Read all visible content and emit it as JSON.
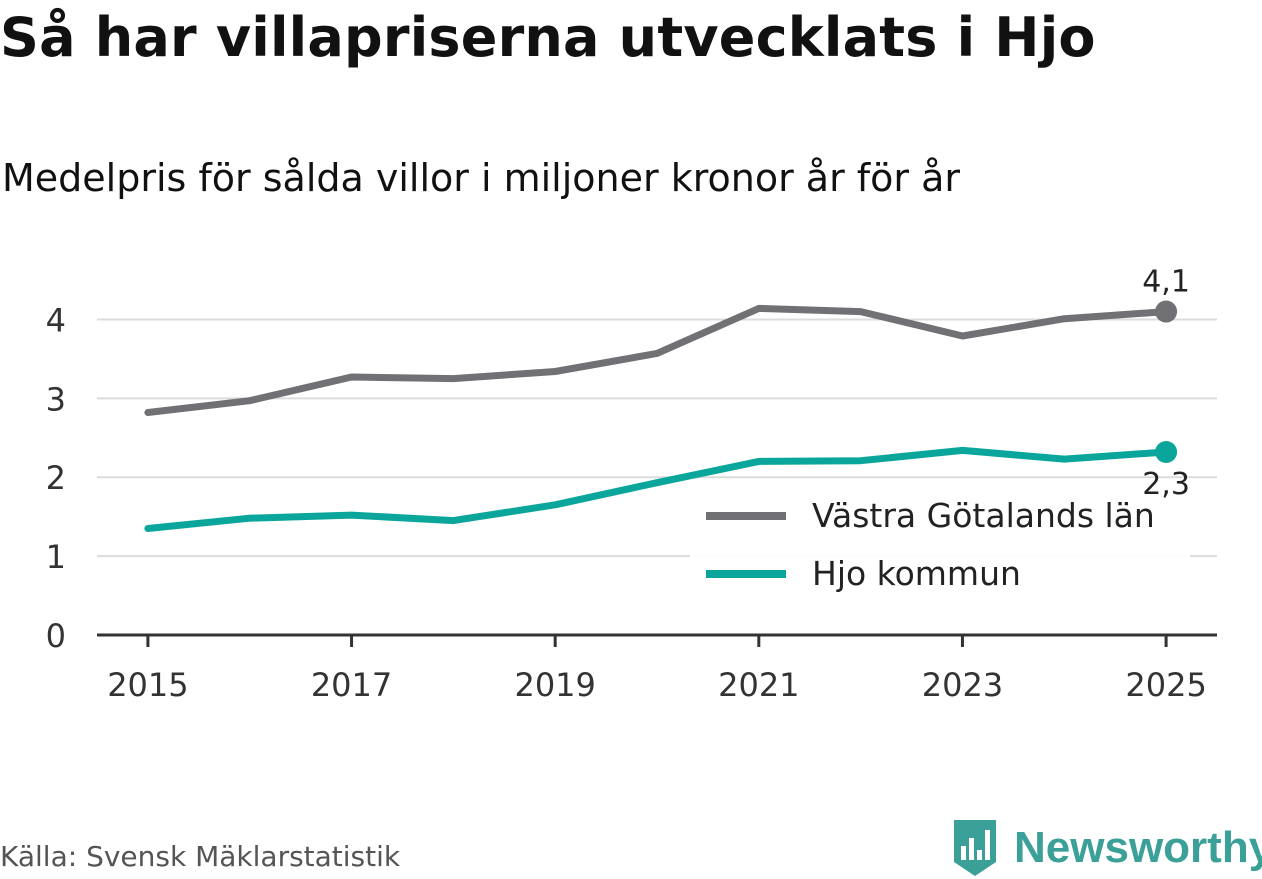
{
  "chart_data": {
    "type": "line",
    "title": "Så har villapriserna utvecklats i Hjo",
    "subtitle": "Medelpris för sålda villor i miljoner kronor år för år",
    "source": "Källa: Svensk Mäklarstatistik",
    "brand": "Newsworthy",
    "xlabel": "",
    "ylabel": "",
    "x": [
      2015,
      2016,
      2017,
      2018,
      2019,
      2020,
      2021,
      2022,
      2023,
      2024,
      2025
    ],
    "xlim": [
      2014.5,
      2025.5
    ],
    "x_ticks": [
      2015,
      2017,
      2019,
      2021,
      2023,
      2025
    ],
    "x_tick_labels": [
      "2015",
      "2017",
      "2019",
      "2021",
      "2023",
      "2025"
    ],
    "ylim": [
      0,
      4.5
    ],
    "y_ticks": [
      0,
      1,
      2,
      3,
      4
    ],
    "y_tick_labels": [
      "0",
      "1",
      "2",
      "3",
      "4"
    ],
    "grid": true,
    "legend_position": "bottom-right",
    "series": [
      {
        "name": "Västra Götalands län",
        "color": "#717175",
        "values": [
          2.82,
          2.97,
          3.27,
          3.25,
          3.34,
          3.57,
          4.14,
          4.1,
          3.79,
          4.01,
          4.1
        ],
        "end_label": "4,1",
        "end_label_position": "above"
      },
      {
        "name": "Hjo kommun",
        "color": "#0ba69b",
        "values": [
          1.35,
          1.48,
          1.52,
          1.45,
          1.65,
          1.93,
          2.2,
          2.21,
          2.34,
          2.23,
          2.32
        ],
        "end_label": "2,3",
        "end_label_position": "below"
      }
    ]
  }
}
